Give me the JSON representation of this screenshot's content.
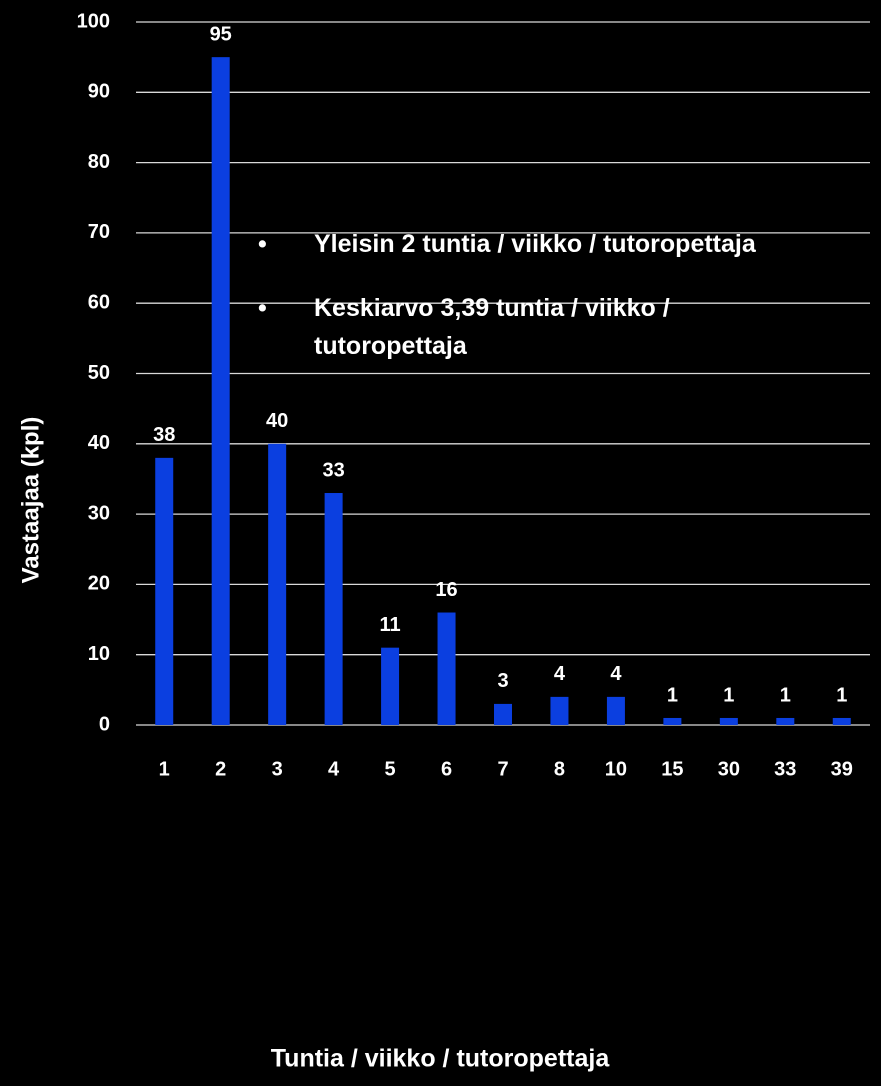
{
  "chart_data": {
    "type": "bar",
    "categories": [
      "1",
      "2",
      "3",
      "4",
      "5",
      "6",
      "7",
      "8",
      "10",
      "15",
      "30",
      "33",
      "39"
    ],
    "values": [
      38,
      95,
      40,
      33,
      11,
      16,
      3,
      4,
      4,
      1,
      1,
      1,
      1
    ],
    "color": "#0b3fe0",
    "xlabel": "Tuntia / viikko / tutoropettaja",
    "ylabel": "Vastaajaa (kpl)",
    "ylim": [
      0,
      100
    ],
    "yticks": [
      0,
      10,
      20,
      30,
      40,
      50,
      60,
      70,
      80,
      90,
      100
    ],
    "grid": true,
    "annotations": [
      "Yleisin 2 tuntia / viikko / tutoropettaja",
      "Keskiarvo 3,39 tuntia / viikko / tutoropettaja"
    ]
  }
}
